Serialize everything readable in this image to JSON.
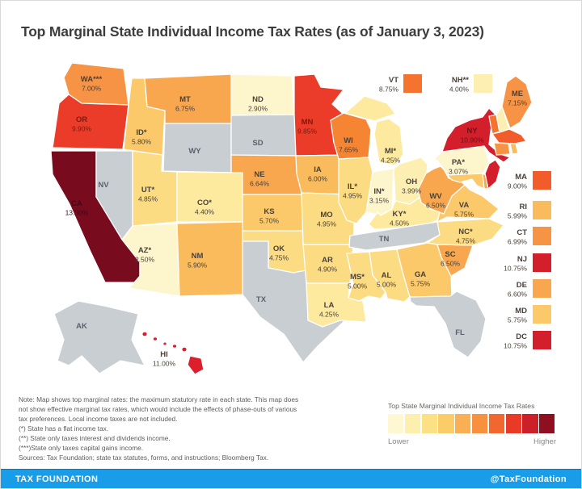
{
  "title": "Top Marginal State Individual Income Tax Rates (as of January 3, 2023)",
  "colors": {
    "background": "#ffffff",
    "no_income_tax_gray": "#c9ced3",
    "footer_blue": "#1a9de9",
    "title_text": "#3d3d3d",
    "default_label": "#4a4139",
    "gray_state_label": "#59626b"
  },
  "map": {
    "states": [
      {
        "id": "AK",
        "label": "AK",
        "rate": null,
        "value": null,
        "color": "#c9ced3",
        "tc": "#59626b"
      },
      {
        "id": "HI",
        "label": "HI",
        "rate": "11.00%",
        "value": 11.0,
        "color": "#dd1f2d"
      },
      {
        "id": "WA",
        "label": "WA***",
        "rate": "7.00%",
        "value": 7.0,
        "color": "#f79344"
      },
      {
        "id": "OR",
        "label": "OR",
        "rate": "9.90%",
        "value": 9.9,
        "color": "#ea3c28",
        "tc": "#7c1a10"
      },
      {
        "id": "CA",
        "label": "CA",
        "rate": "13.30%",
        "value": 13.3,
        "color": "#780b1e",
        "tc": "#3a0914"
      },
      {
        "id": "NV",
        "label": "NV",
        "rate": null,
        "value": null,
        "color": "#c9ced3",
        "tc": "#59626b"
      },
      {
        "id": "ID",
        "label": "ID*",
        "rate": "5.80%",
        "value": 5.8,
        "color": "#fbc96a"
      },
      {
        "id": "MT",
        "label": "MT",
        "rate": "6.75%",
        "value": 6.75,
        "color": "#f8a74e"
      },
      {
        "id": "WY",
        "label": "WY",
        "rate": null,
        "value": null,
        "color": "#c9ced3",
        "tc": "#59626b"
      },
      {
        "id": "UT",
        "label": "UT*",
        "rate": "4.85%",
        "value": 4.85,
        "color": "#fcdc82"
      },
      {
        "id": "CO",
        "label": "CO*",
        "rate": "4.40%",
        "value": 4.4,
        "color": "#fdea9f"
      },
      {
        "id": "AZ",
        "label": "AZ*",
        "rate": "2.50%",
        "value": 2.5,
        "color": "#fdf5cb"
      },
      {
        "id": "NM",
        "label": "NM",
        "rate": "5.90%",
        "value": 5.9,
        "color": "#fabb5c"
      },
      {
        "id": "ND",
        "label": "ND",
        "rate": "2.90%",
        "value": 2.9,
        "color": "#fdf5cb"
      },
      {
        "id": "SD",
        "label": "SD",
        "rate": null,
        "value": null,
        "color": "#c9ced3",
        "tc": "#59626b"
      },
      {
        "id": "NE",
        "label": "NE",
        "rate": "6.64%",
        "value": 6.64,
        "color": "#f8a74e"
      },
      {
        "id": "KS",
        "label": "KS",
        "rate": "5.70%",
        "value": 5.7,
        "color": "#fbc96a"
      },
      {
        "id": "OK",
        "label": "OK",
        "rate": "4.75%",
        "value": 4.75,
        "color": "#fcdc82"
      },
      {
        "id": "TX",
        "label": "TX",
        "rate": null,
        "value": null,
        "color": "#c9ced3",
        "tc": "#59626b"
      },
      {
        "id": "MN",
        "label": "MN",
        "rate": "9.85%",
        "value": 9.85,
        "color": "#ea3c28",
        "tc": "#7c1a10"
      },
      {
        "id": "IA",
        "label": "IA",
        "rate": "6.00%",
        "value": 6.0,
        "color": "#fabb5c"
      },
      {
        "id": "MO",
        "label": "MO",
        "rate": "4.95%",
        "value": 4.95,
        "color": "#fcdc82"
      },
      {
        "id": "AR",
        "label": "AR",
        "rate": "4.90%",
        "value": 4.9,
        "color": "#fcdc82"
      },
      {
        "id": "LA",
        "label": "LA",
        "rate": "4.25%",
        "value": 4.25,
        "color": "#fdea9f"
      },
      {
        "id": "WI",
        "label": "WI",
        "rate": "7.65%",
        "value": 7.65,
        "color": "#f58433"
      },
      {
        "id": "IL",
        "label": "IL*",
        "rate": "4.95%",
        "value": 4.95,
        "color": "#fcdc82"
      },
      {
        "id": "MI",
        "label": "MI*",
        "rate": "4.25%",
        "value": 4.25,
        "color": "#fdea9f"
      },
      {
        "id": "IN",
        "label": "IN*",
        "rate": "3.15%",
        "value": 3.15,
        "color": "#fdf5cb"
      },
      {
        "id": "OH",
        "label": "OH",
        "rate": "3.99%",
        "value": 3.99,
        "color": "#fdefb1"
      },
      {
        "id": "KY",
        "label": "KY*",
        "rate": "4.50%",
        "value": 4.5,
        "color": "#fdea9f"
      },
      {
        "id": "TN",
        "label": "TN",
        "rate": null,
        "value": null,
        "color": "#c9ced3",
        "tc": "#59626b"
      },
      {
        "id": "MS",
        "label": "MS*",
        "rate": "5.00%",
        "value": 5.0,
        "color": "#fcdc82"
      },
      {
        "id": "AL",
        "label": "AL",
        "rate": "5.00%",
        "value": 5.0,
        "color": "#fcdc82"
      },
      {
        "id": "GA",
        "label": "GA",
        "rate": "5.75%",
        "value": 5.75,
        "color": "#fbc96a"
      },
      {
        "id": "FL",
        "label": "FL",
        "rate": null,
        "value": null,
        "color": "#c9ced3",
        "tc": "#59626b"
      },
      {
        "id": "SC",
        "label": "SC",
        "rate": "6.50%",
        "value": 6.5,
        "color": "#f8a74e"
      },
      {
        "id": "NC",
        "label": "NC*",
        "rate": "4.75%",
        "value": 4.75,
        "color": "#fcdc82"
      },
      {
        "id": "VA",
        "label": "VA",
        "rate": "5.75%",
        "value": 5.75,
        "color": "#fbc96a"
      },
      {
        "id": "WV",
        "label": "WV",
        "rate": "6.50%",
        "value": 6.5,
        "color": "#f8a74e"
      },
      {
        "id": "PA",
        "label": "PA*",
        "rate": "3.07%",
        "value": 3.07,
        "color": "#fdf5cb"
      },
      {
        "id": "NY",
        "label": "NY",
        "rate": "10.90%",
        "value": 10.9,
        "color": "#d31e2b",
        "tc": "#701013"
      },
      {
        "id": "MD",
        "label": "MD",
        "rate": "5.75%",
        "value": 5.75,
        "color": "#fbc96a"
      },
      {
        "id": "DE",
        "label": "DE",
        "rate": "6.60%",
        "value": 6.6,
        "color": "#f8a74e"
      },
      {
        "id": "NJ",
        "label": "NJ",
        "rate": "10.75%",
        "value": 10.75,
        "color": "#d31e2b"
      },
      {
        "id": "VT",
        "label": "VT",
        "rate": "8.75%",
        "value": 8.75,
        "color": "#f4742f"
      },
      {
        "id": "NH",
        "label": "NH**",
        "rate": "4.00%",
        "value": 4.0,
        "color": "#fdefb1"
      },
      {
        "id": "MA",
        "label": "MA",
        "rate": "9.00%",
        "value": 9.0,
        "color": "#f25c2b"
      },
      {
        "id": "CT",
        "label": "CT",
        "rate": "6.99%",
        "value": 6.99,
        "color": "#f79344"
      },
      {
        "id": "RI",
        "label": "RI",
        "rate": "5.99%",
        "value": 5.99,
        "color": "#fabb5c"
      },
      {
        "id": "ME",
        "label": "ME",
        "rate": "7.15%",
        "value": 7.15,
        "color": "#f79344"
      },
      {
        "id": "DC",
        "label": "DC",
        "rate": "10.75%",
        "value": 10.75,
        "color": "#d31e2b"
      }
    ],
    "callouts_top": [
      "VT",
      "NH"
    ],
    "callouts_right": [
      "MA",
      "RI",
      "CT",
      "NJ",
      "DE",
      "MD",
      "DC"
    ]
  },
  "chart_data": {
    "type": "heatmap",
    "title": "Top Marginal State Individual Income Tax Rates (as of January 3, 2023)",
    "unit": "percent",
    "categories": [
      "AK",
      "HI",
      "WA",
      "OR",
      "CA",
      "NV",
      "ID",
      "MT",
      "WY",
      "UT",
      "CO",
      "AZ",
      "NM",
      "ND",
      "SD",
      "NE",
      "KS",
      "OK",
      "TX",
      "MN",
      "IA",
      "MO",
      "AR",
      "LA",
      "WI",
      "IL",
      "MI",
      "IN",
      "OH",
      "KY",
      "TN",
      "MS",
      "AL",
      "GA",
      "FL",
      "SC",
      "NC",
      "VA",
      "WV",
      "PA",
      "NY",
      "MD",
      "DE",
      "NJ",
      "VT",
      "NH",
      "MA",
      "CT",
      "RI",
      "ME",
      "DC"
    ],
    "values": [
      null,
      11.0,
      7.0,
      9.9,
      13.3,
      null,
      5.8,
      6.75,
      null,
      4.85,
      4.4,
      2.5,
      5.9,
      2.9,
      null,
      6.64,
      5.7,
      4.75,
      null,
      9.85,
      6.0,
      4.95,
      4.9,
      4.25,
      7.65,
      4.95,
      4.25,
      3.15,
      3.99,
      4.5,
      null,
      5.0,
      5.0,
      5.75,
      null,
      6.5,
      4.75,
      5.75,
      6.5,
      3.07,
      10.9,
      5.75,
      6.6,
      10.75,
      8.75,
      4.0,
      9.0,
      6.99,
      5.99,
      7.15,
      10.75
    ],
    "legend_position": "bottom-right"
  },
  "notes": {
    "text": "Note: Map shows top marginal rates: the maximum statutory rate in each state. This map does\nnot show effective marginal tax rates, which would include the effects of phase-outs of various\ntax preferences. Local income taxes are not included.\n(*) State has a flat income tax.\n(**) State only taxes interest and dividends income.\n(***)State only taxes capital gains income.\nSources: Tax Foundation; state tax statutes, forms, and instructions; Bloomberg Tax."
  },
  "legend": {
    "title": "Top State Marginal Individual Income Tax Rates",
    "lower": "Lower",
    "higher": "Higher",
    "colors": [
      "#fdf8d2",
      "#fdefad",
      "#fce184",
      "#fbcd68",
      "#f9b055",
      "#f79140",
      "#f2672f",
      "#e93a28",
      "#cb2027",
      "#8f0e20"
    ]
  },
  "footer": {
    "brand": "TAX FOUNDATION",
    "handle": "@TaxFoundation"
  }
}
